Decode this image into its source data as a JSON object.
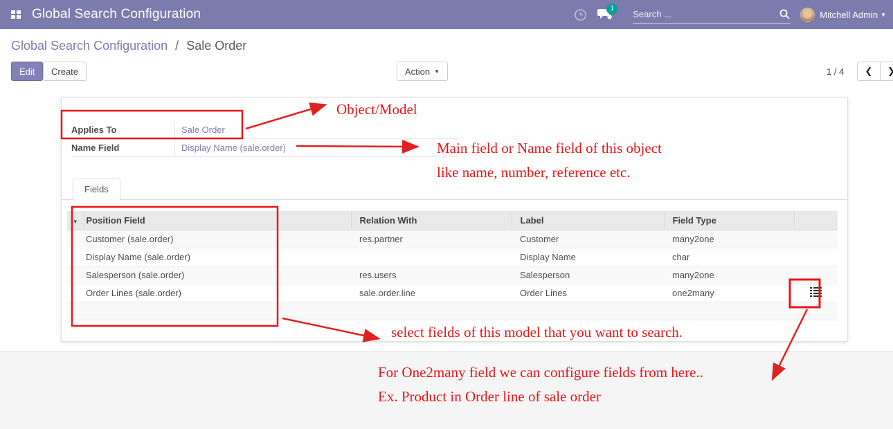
{
  "header": {
    "title": "Global Search Configuration",
    "search_placeholder": "Search ...",
    "message_badge": "1",
    "user_name": "Mitchell Admin"
  },
  "breadcrumb": {
    "parent": "Global Search Configuration",
    "separator": "/",
    "current": "Sale Order"
  },
  "control_panel": {
    "edit_label": "Edit",
    "create_label": "Create",
    "action_label": "Action",
    "pager_count": "1 / 4"
  },
  "form": {
    "applies_to_label": "Applies To",
    "applies_to_value": "Sale Order",
    "name_field_label": "Name Field",
    "name_field_value": "Display Name (sale.order)",
    "tab_label": "Fields"
  },
  "table": {
    "columns": [
      "Position Field",
      "Relation With",
      "Label",
      "Field Type"
    ],
    "rows": [
      {
        "position_field": "Customer (sale.order)",
        "relation_with": "res.partner",
        "label": "Customer",
        "field_type": "many2one",
        "has_icon": false
      },
      {
        "position_field": "Display Name (sale.order)",
        "relation_with": "",
        "label": "Display Name",
        "field_type": "char",
        "has_icon": false
      },
      {
        "position_field": "Salesperson (sale.order)",
        "relation_with": "res.users",
        "label": "Salesperson",
        "field_type": "many2one",
        "has_icon": false
      },
      {
        "position_field": "Order Lines (sale.order)",
        "relation_with": "sale.order.line",
        "label": "Order Lines",
        "field_type": "one2many",
        "has_icon": true
      }
    ]
  },
  "annotations": {
    "object_model": "Object/Model",
    "name_field_line1": "Main field or Name field of this object",
    "name_field_line2": "like name, number, reference etc.",
    "select_fields": "select fields of this model that you want to search.",
    "one2many_line1": "For One2many field we can configure fields from here..",
    "one2many_line2": "Ex. Product in Order line of sale order",
    "color": "#ef1313"
  },
  "icons": {
    "sort_caret": "▼",
    "dropdown_caret": "▼",
    "user_caret": "▼",
    "pager_prev": "❮",
    "pager_next": "❯"
  }
}
